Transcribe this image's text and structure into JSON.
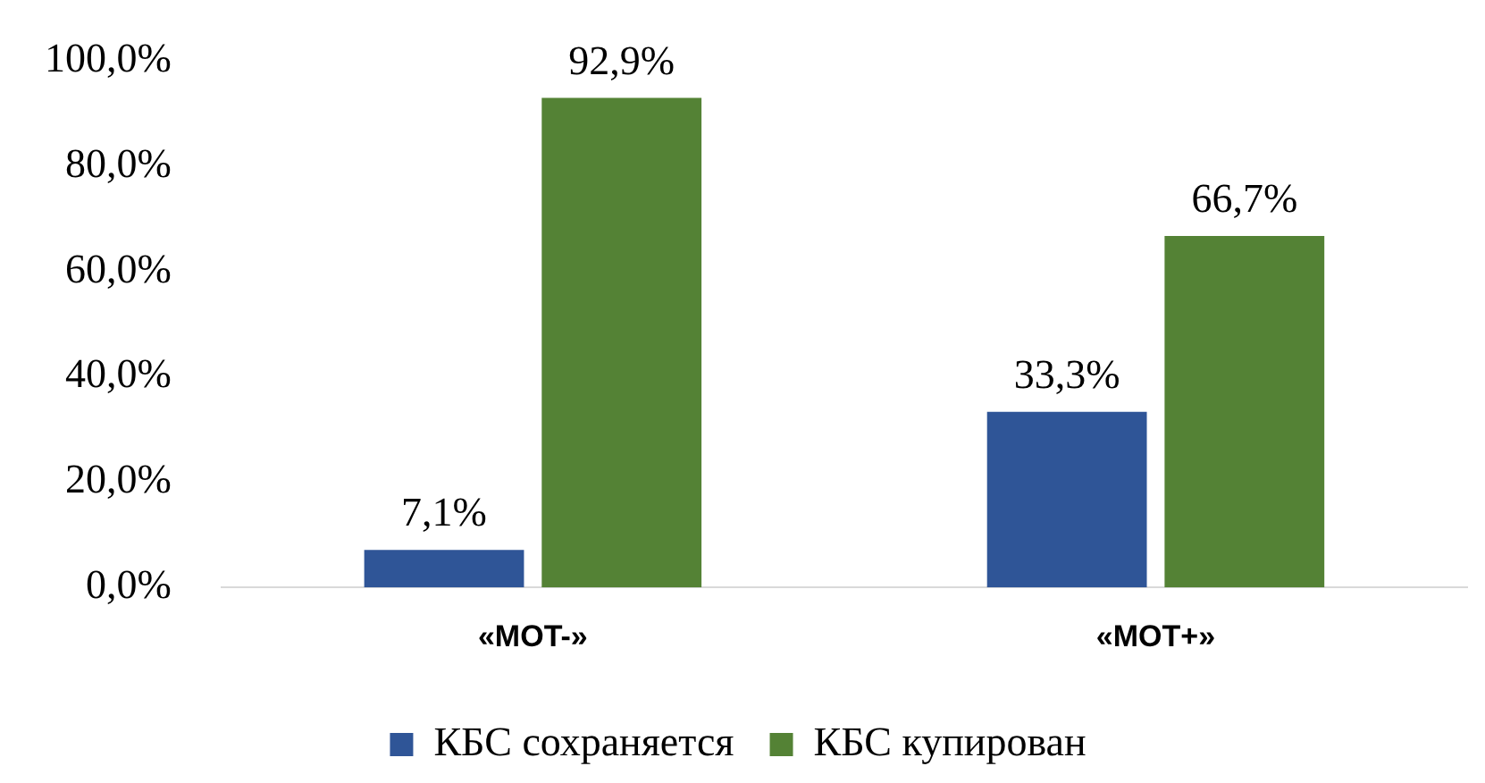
{
  "chart_data": {
    "type": "bar",
    "categories": [
      "«MOT-»",
      "«MOT+»"
    ],
    "series": [
      {
        "name": "КБС сохраняется",
        "color": "#2f5597",
        "values": [
          7.1,
          33.3
        ],
        "value_labels": [
          "7,1%",
          "33,3%"
        ]
      },
      {
        "name": "КБС купирован",
        "color": "#548235",
        "values": [
          92.9,
          66.7
        ],
        "value_labels": [
          "92,9%",
          "66,7%"
        ]
      }
    ],
    "ylim": [
      0,
      100
    ],
    "yticks": [
      {
        "value": 0,
        "label": "0,0%"
      },
      {
        "value": 20,
        "label": "20,0%"
      },
      {
        "value": 40,
        "label": "40,0%"
      },
      {
        "value": 60,
        "label": "60,0%"
      },
      {
        "value": 80,
        "label": "80,0%"
      },
      {
        "value": 100,
        "label": "100,0%"
      }
    ],
    "grid": false,
    "legend": "bottom"
  }
}
